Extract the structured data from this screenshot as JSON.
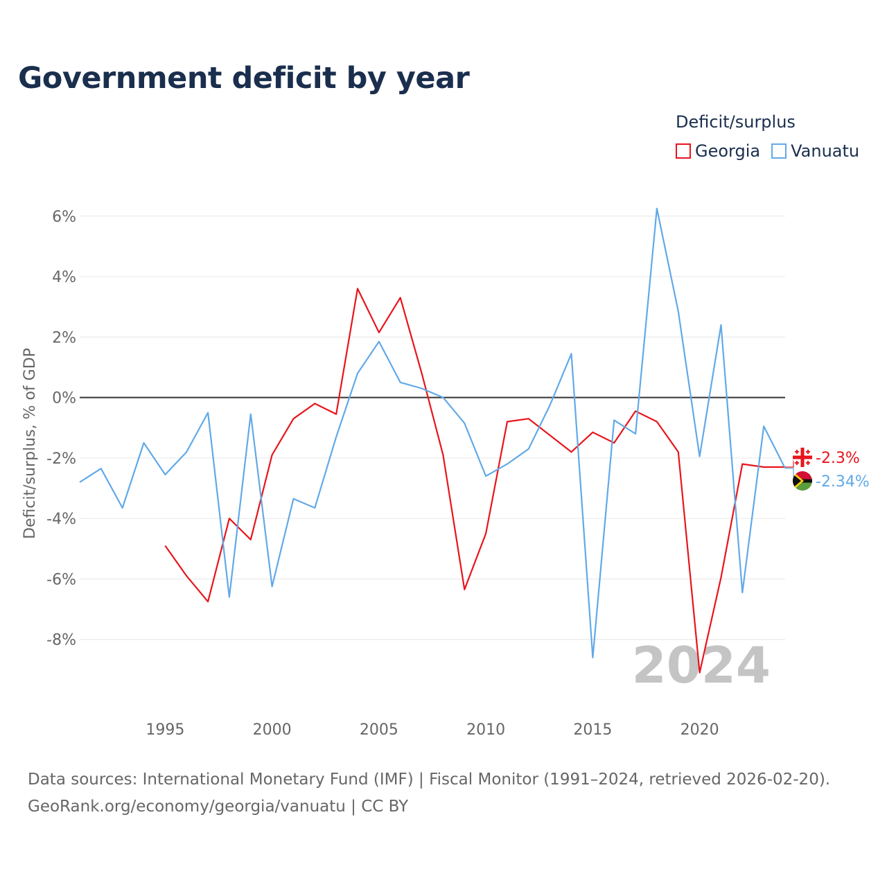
{
  "title": "Government deficit by year",
  "legend": {
    "title": "Deficit/surplus",
    "items": [
      {
        "label": "Georgia",
        "color": "#e8141b"
      },
      {
        "label": "Vanuatu",
        "color": "#61a9e8"
      }
    ]
  },
  "chart_data": {
    "type": "line",
    "title": "Government deficit by year",
    "xlabel": "",
    "ylabel": "Deficit/surplus, % of GDP",
    "xlim": [
      1991,
      2024
    ],
    "ylim": [
      -10,
      6.5
    ],
    "yticks": [
      6,
      4,
      2,
      0,
      -2,
      -4,
      -6,
      -8
    ],
    "ytick_labels": [
      "6%",
      "4%",
      "2%",
      "0%",
      "-2%",
      "-4%",
      "-6%",
      "-8%"
    ],
    "xticks": [
      1995,
      2000,
      2005,
      2010,
      2015,
      2020
    ],
    "xtick_labels": [
      "1995",
      "2000",
      "2005",
      "2010",
      "2015",
      "2020"
    ],
    "grid": true,
    "year_watermark": "2024",
    "series": [
      {
        "name": "Georgia",
        "color": "#e8141b",
        "end_label": "-2.3%",
        "icon": "georgia-flag-icon",
        "x": [
          1995,
          1996,
          1997,
          1998,
          1999,
          2000,
          2001,
          2002,
          2003,
          2004,
          2005,
          2006,
          2007,
          2008,
          2009,
          2010,
          2011,
          2012,
          2013,
          2014,
          2015,
          2016,
          2017,
          2018,
          2019,
          2020,
          2021,
          2022,
          2023,
          2024
        ],
        "values": [
          -4.9,
          -5.9,
          -6.75,
          -4.0,
          -4.7,
          -1.9,
          -0.7,
          -0.2,
          -0.55,
          3.6,
          2.15,
          3.3,
          0.8,
          -1.9,
          -6.35,
          -4.5,
          -0.8,
          -0.7,
          -1.25,
          -1.8,
          -1.15,
          -1.5,
          -0.45,
          -0.8,
          -1.8,
          -9.1,
          -5.95,
          -2.2,
          -2.3,
          -2.3
        ]
      },
      {
        "name": "Vanuatu",
        "color": "#61a9e8",
        "end_label": "-2.34%",
        "icon": "vanuatu-flag-icon",
        "x": [
          1991,
          1992,
          1993,
          1994,
          1995,
          1996,
          1997,
          1998,
          1999,
          2000,
          2001,
          2002,
          2003,
          2004,
          2005,
          2006,
          2007,
          2008,
          2009,
          2010,
          2011,
          2012,
          2013,
          2014,
          2015,
          2016,
          2017,
          2018,
          2019,
          2020,
          2021,
          2022,
          2023,
          2024
        ],
        "values": [
          -2.8,
          -2.35,
          -3.65,
          -1.5,
          -2.55,
          -1.8,
          -0.5,
          -6.6,
          -0.55,
          -6.25,
          -3.35,
          -3.65,
          -1.3,
          0.8,
          1.85,
          0.5,
          0.3,
          0.0,
          -0.85,
          -2.6,
          -2.2,
          -1.7,
          -0.25,
          1.45,
          -8.6,
          -0.75,
          -1.2,
          6.25,
          2.85,
          -1.95,
          2.4,
          -6.45,
          -0.95,
          -2.34
        ]
      }
    ]
  },
  "footer": {
    "source_line": "Data sources: International Monetary Fund (IMF) | Fiscal Monitor (1991–2024, retrieved 2026-02-20).",
    "credit_line": "GeoRank.org/economy/georgia/vanuatu | CC BY"
  }
}
